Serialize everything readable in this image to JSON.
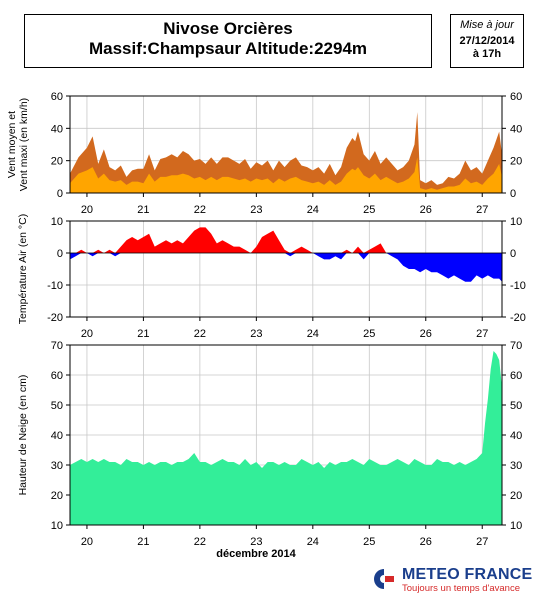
{
  "header": {
    "title_line1": "Nivose Orcières",
    "title_line2": "Massif:Champsaur Altitude:2294m",
    "update_label": "Mise à jour",
    "update_date": "27/12/2014",
    "update_time": "à 17h"
  },
  "footer": {
    "month_label": "décembre 2014",
    "logo_name": "METEO FRANCE",
    "logo_tagline": "Toujours un temps d'avance"
  },
  "colors": {
    "wind_mean": "#ffa500",
    "wind_max": "#d2691e",
    "temp_pos": "#ff0000",
    "temp_neg": "#0000ff",
    "snow": "#33ee99"
  },
  "chart_data": [
    {
      "type": "area",
      "panel": "wind",
      "ylabel_lines": [
        "Vent moyen et",
        "Vent maxi (en km/h)"
      ],
      "ylim": [
        0,
        60
      ],
      "yticks": [
        0,
        20,
        40,
        60
      ],
      "xlim": [
        19.7,
        27.35
      ],
      "day_labels": [
        "20",
        "21",
        "22",
        "23",
        "24",
        "25",
        "26",
        "27"
      ],
      "grid": true,
      "series": [
        {
          "role": "max",
          "x": [
            19.7,
            19.85,
            20.0,
            20.1,
            20.2,
            20.3,
            20.4,
            20.5,
            20.6,
            20.7,
            20.8,
            20.9,
            21.0,
            21.1,
            21.2,
            21.3,
            21.4,
            21.5,
            21.6,
            21.7,
            21.8,
            21.9,
            22.0,
            22.1,
            22.2,
            22.3,
            22.4,
            22.5,
            22.6,
            22.7,
            22.8,
            22.9,
            23.0,
            23.1,
            23.2,
            23.3,
            23.4,
            23.5,
            23.6,
            23.7,
            23.8,
            23.9,
            24.0,
            24.1,
            24.2,
            24.3,
            24.4,
            24.5,
            24.6,
            24.7,
            24.75,
            24.8,
            24.9,
            25.0,
            25.1,
            25.2,
            25.3,
            25.4,
            25.5,
            25.6,
            25.7,
            25.8,
            25.85,
            25.9,
            26.0,
            26.1,
            26.2,
            26.3,
            26.4,
            26.5,
            26.6,
            26.7,
            26.8,
            26.9,
            27.0,
            27.1,
            27.2,
            27.3,
            27.35
          ],
          "values": [
            12,
            22,
            28,
            35,
            18,
            27,
            16,
            14,
            17,
            10,
            14,
            15,
            15,
            24,
            14,
            21,
            22,
            24,
            22,
            26,
            24,
            20,
            21,
            18,
            22,
            18,
            22,
            22,
            20,
            18,
            21,
            15,
            19,
            17,
            20,
            14,
            20,
            16,
            20,
            22,
            17,
            16,
            14,
            16,
            12,
            18,
            11,
            16,
            28,
            34,
            32,
            38,
            24,
            20,
            26,
            18,
            22,
            18,
            14,
            16,
            20,
            30,
            50,
            8,
            6,
            8,
            5,
            6,
            10,
            9,
            12,
            20,
            14,
            16,
            12,
            20,
            28,
            38,
            24
          ]
        },
        {
          "role": "mean",
          "x": [
            19.7,
            19.85,
            20.0,
            20.1,
            20.2,
            20.3,
            20.4,
            20.5,
            20.6,
            20.7,
            20.8,
            20.9,
            21.0,
            21.1,
            21.2,
            21.3,
            21.4,
            21.5,
            21.6,
            21.7,
            21.8,
            21.9,
            22.0,
            22.1,
            22.2,
            22.3,
            22.4,
            22.5,
            22.6,
            22.7,
            22.8,
            22.9,
            23.0,
            23.1,
            23.2,
            23.3,
            23.4,
            23.5,
            23.6,
            23.7,
            23.8,
            23.9,
            24.0,
            24.1,
            24.2,
            24.3,
            24.4,
            24.5,
            24.6,
            24.7,
            24.75,
            24.8,
            24.9,
            25.0,
            25.1,
            25.2,
            25.3,
            25.4,
            25.5,
            25.6,
            25.7,
            25.8,
            25.85,
            25.9,
            26.0,
            26.1,
            26.2,
            26.3,
            26.4,
            26.5,
            26.6,
            26.7,
            26.8,
            26.9,
            27.0,
            27.1,
            27.2,
            27.3,
            27.35
          ],
          "values": [
            6,
            12,
            14,
            16,
            9,
            12,
            8,
            7,
            8,
            5,
            7,
            7,
            6,
            12,
            7,
            10,
            10,
            11,
            11,
            12,
            11,
            9,
            10,
            8,
            10,
            8,
            10,
            10,
            9,
            8,
            9,
            7,
            9,
            8,
            9,
            6,
            9,
            7,
            9,
            10,
            8,
            7,
            6,
            7,
            5,
            8,
            5,
            7,
            12,
            15,
            14,
            16,
            11,
            9,
            12,
            8,
            10,
            8,
            6,
            7,
            9,
            13,
            22,
            3,
            2,
            3,
            2,
            3,
            4,
            4,
            5,
            9,
            6,
            7,
            5,
            9,
            12,
            18,
            10
          ]
        }
      ]
    },
    {
      "type": "area",
      "panel": "temperature",
      "ylabel": "Température Air (en °C)",
      "ylim": [
        -20,
        10
      ],
      "yticks": [
        -20,
        -10,
        0,
        10
      ],
      "xlim": [
        19.7,
        27.35
      ],
      "day_labels": [
        "20",
        "21",
        "22",
        "23",
        "24",
        "25",
        "26",
        "27"
      ],
      "grid": true,
      "x": [
        19.7,
        19.8,
        19.9,
        20.0,
        20.1,
        20.2,
        20.3,
        20.4,
        20.5,
        20.6,
        20.7,
        20.8,
        20.9,
        21.0,
        21.1,
        21.2,
        21.3,
        21.4,
        21.5,
        21.6,
        21.7,
        21.8,
        21.9,
        22.0,
        22.1,
        22.2,
        22.3,
        22.4,
        22.5,
        22.6,
        22.7,
        22.8,
        22.9,
        23.0,
        23.1,
        23.2,
        23.3,
        23.4,
        23.5,
        23.6,
        23.7,
        23.8,
        23.9,
        24.0,
        24.1,
        24.2,
        24.3,
        24.4,
        24.5,
        24.6,
        24.7,
        24.8,
        24.9,
        25.0,
        25.1,
        25.2,
        25.3,
        25.4,
        25.5,
        25.6,
        25.7,
        25.8,
        25.9,
        26.0,
        26.1,
        26.2,
        26.3,
        26.4,
        26.5,
        26.6,
        26.7,
        26.8,
        26.9,
        27.0,
        27.1,
        27.2,
        27.3,
        27.35
      ],
      "values": [
        -2,
        -1,
        1,
        0,
        -1,
        1,
        0,
        1,
        -1,
        2,
        4,
        5,
        4,
        5,
        6,
        2,
        3,
        4,
        3,
        4,
        3,
        5,
        7,
        8,
        8,
        6,
        3,
        4,
        3,
        2,
        2,
        1,
        0,
        2,
        5,
        6,
        7,
        4,
        1,
        -1,
        1,
        2,
        1,
        0,
        -1,
        -2,
        -2,
        -1,
        -2,
        1,
        0,
        2,
        -2,
        1,
        2,
        3,
        0,
        -1,
        -2,
        -4,
        -5,
        -5,
        -6,
        -5,
        -6,
        -6,
        -7,
        -8,
        -7,
        -8,
        -9,
        -9,
        -7,
        -8,
        -7,
        -8,
        -8,
        -9
      ]
    },
    {
      "type": "area",
      "panel": "snow",
      "ylabel": "Hauteur de Neige (en cm)",
      "xlabel": "décembre 2014",
      "ylim": [
        10,
        70
      ],
      "yticks": [
        10,
        20,
        30,
        40,
        50,
        60,
        70
      ],
      "xlim": [
        19.7,
        27.35
      ],
      "day_labels": [
        "20",
        "21",
        "22",
        "23",
        "24",
        "25",
        "26",
        "27"
      ],
      "grid": true,
      "x": [
        19.7,
        19.8,
        19.9,
        20.0,
        20.1,
        20.2,
        20.3,
        20.4,
        20.5,
        20.6,
        20.7,
        20.8,
        20.9,
        21.0,
        21.1,
        21.2,
        21.3,
        21.4,
        21.5,
        21.6,
        21.7,
        21.8,
        21.9,
        22.0,
        22.1,
        22.2,
        22.3,
        22.4,
        22.5,
        22.6,
        22.7,
        22.8,
        22.9,
        23.0,
        23.1,
        23.2,
        23.3,
        23.4,
        23.5,
        23.6,
        23.7,
        23.8,
        23.9,
        24.0,
        24.1,
        24.2,
        24.3,
        24.4,
        24.5,
        24.6,
        24.7,
        24.8,
        24.9,
        25.0,
        25.1,
        25.2,
        25.3,
        25.4,
        25.5,
        25.6,
        25.7,
        25.8,
        25.9,
        26.0,
        26.1,
        26.2,
        26.3,
        26.4,
        26.5,
        26.6,
        26.7,
        26.8,
        26.9,
        27.0,
        27.05,
        27.1,
        27.15,
        27.2,
        27.25,
        27.3,
        27.35
      ],
      "values": [
        30,
        31,
        32,
        31,
        32,
        31,
        32,
        31,
        31,
        30,
        32,
        31,
        31,
        30,
        31,
        30,
        31,
        31,
        30,
        31,
        31,
        32,
        34,
        31,
        31,
        30,
        31,
        32,
        31,
        31,
        30,
        32,
        30,
        31,
        29,
        31,
        31,
        30,
        31,
        30,
        30,
        32,
        31,
        30,
        31,
        29,
        31,
        30,
        31,
        31,
        32,
        31,
        30,
        32,
        31,
        30,
        30,
        31,
        32,
        31,
        30,
        32,
        31,
        30,
        30,
        32,
        31,
        31,
        30,
        31,
        30,
        31,
        32,
        34,
        44,
        52,
        62,
        68,
        67,
        65,
        56
      ]
    }
  ]
}
